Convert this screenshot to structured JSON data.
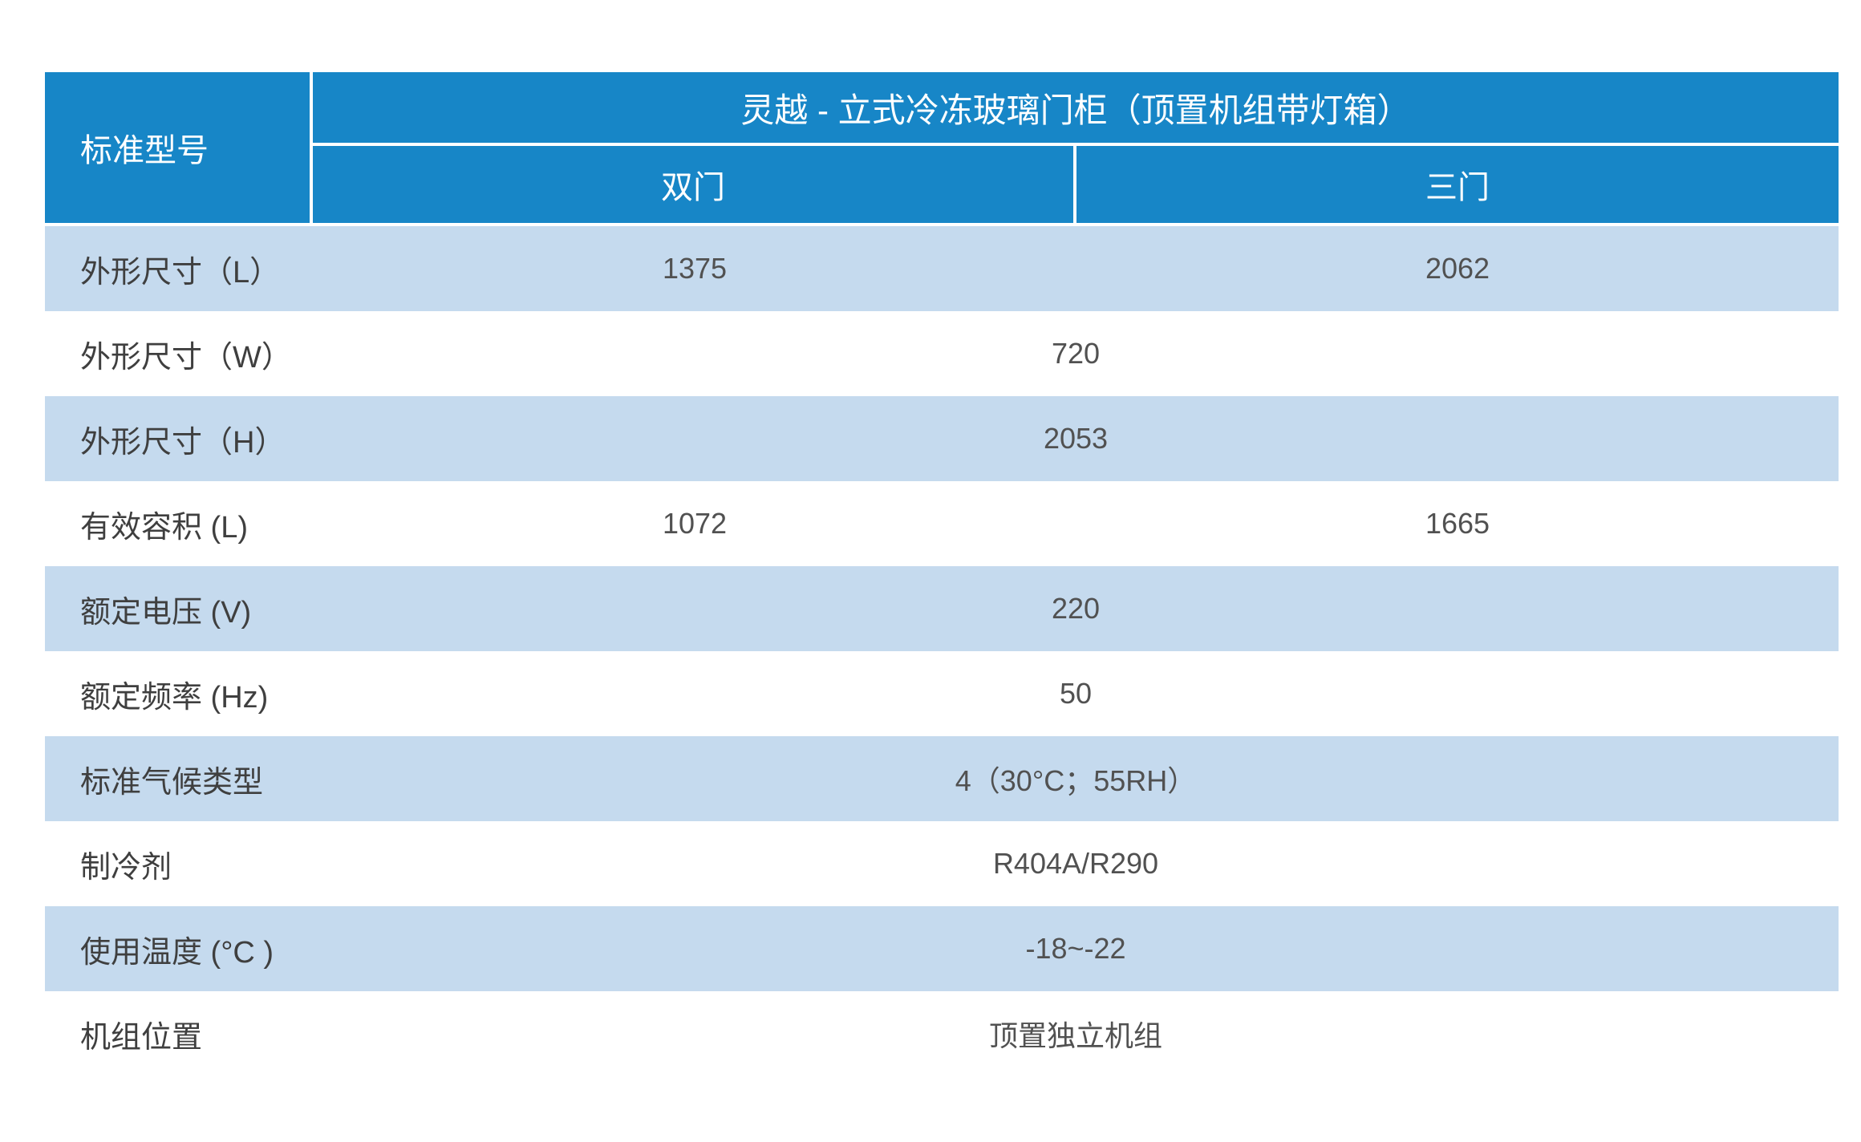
{
  "colors": {
    "header_blue": "#1786c7",
    "row_light_blue": "#c5daee",
    "row_white": "#ffffff",
    "header_text": "#ffffff",
    "label_text": "#3f3f3f",
    "value_text": "#515151"
  },
  "table": {
    "corner_header": "标准型号",
    "title": "灵越 - 立式冷冻玻璃门柜（顶置机组带灯箱）",
    "columns": [
      {
        "label": "双门"
      },
      {
        "label": "三门"
      }
    ],
    "rows": [
      {
        "label": "外形尺寸（L）",
        "values": [
          "1375",
          "2062"
        ]
      },
      {
        "label": "外形尺寸（W）",
        "values": [
          "720"
        ]
      },
      {
        "label": "外形尺寸（H）",
        "values": [
          "2053"
        ]
      },
      {
        "label": "有效容积 (L)",
        "values": [
          "1072",
          "1665"
        ]
      },
      {
        "label": "额定电压 (V)",
        "values": [
          "220"
        ]
      },
      {
        "label": "额定频率 (Hz)",
        "values": [
          "50"
        ]
      },
      {
        "label": "标准气候类型",
        "values": [
          "4（30°C；55RH）"
        ]
      },
      {
        "label": "制冷剂",
        "values": [
          "R404A/R290"
        ]
      },
      {
        "label": "使用温度 (°C )",
        "values": [
          "-18~-22"
        ]
      },
      {
        "label": "机组位置",
        "values": [
          "顶置独立机组"
        ]
      }
    ]
  }
}
